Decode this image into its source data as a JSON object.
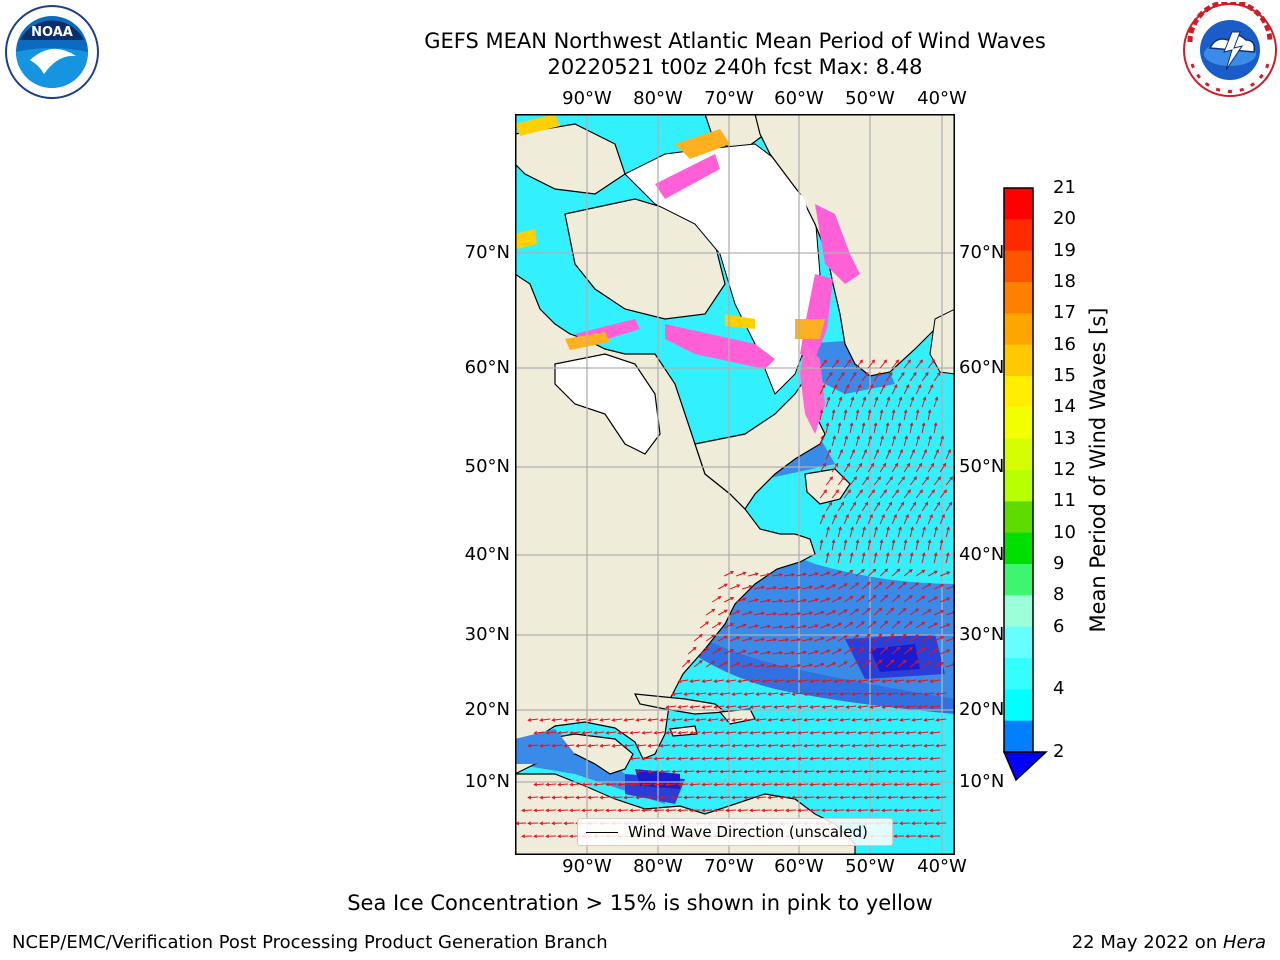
{
  "header": {
    "title_line1": "GEFS MEAN Northwest Atlantic Mean Period of Wind Waves",
    "title_line2": "20220521 t00z 240h fcst   Max: 8.48"
  },
  "logos": {
    "noaa": {
      "text": "NOAA",
      "ring_text": "NATIONAL OCEANIC AND ATMOSPHERIC ADMINISTRATION · U.S. DEPARTMENT OF COMMERCE"
    },
    "nws": {
      "ring_text": "NATIONAL WEATHER SERVICE"
    }
  },
  "map": {
    "lon_labels": [
      "90°W",
      "80°W",
      "70°W",
      "60°W",
      "50°W",
      "40°W"
    ],
    "lat_labels": [
      "70°N",
      "60°N",
      "50°N",
      "40°N",
      "30°N",
      "20°N",
      "10°N"
    ],
    "legend_label": "Wind Wave Direction (unscaled)",
    "colors": {
      "land": "#efedda",
      "ice": "#ffffff",
      "grid": "#b0b0b0",
      "arrow": "#e8101e"
    }
  },
  "colorbar": {
    "label": "Mean Period of Wind Waves [s]",
    "ticks": [
      "21",
      "20",
      "19",
      "18",
      "17",
      "16",
      "15",
      "14",
      "13",
      "12",
      "11",
      "10",
      "9",
      "8",
      "6",
      "4",
      "2"
    ],
    "bins_top_to_bottom": [
      "#ff0000",
      "#ff2a00",
      "#ff5500",
      "#ff7f00",
      "#ffa500",
      "#ffc800",
      "#ffee00",
      "#f2ff00",
      "#d5ff00",
      "#b8ff00",
      "#5edb00",
      "#00e000",
      "#3df56e",
      "#9bffd9",
      "#66ffff",
      "#33ffff",
      "#00ffff",
      "#0080ff"
    ],
    "under_color": "#0000ff"
  },
  "note": "Sea Ice Concentration > 15% is shown in pink to yellow",
  "footer": {
    "left": "NCEP/EMC/Verification Post Processing Product Generation Branch",
    "date": "22 May 2022 on ",
    "host": "Hera"
  }
}
